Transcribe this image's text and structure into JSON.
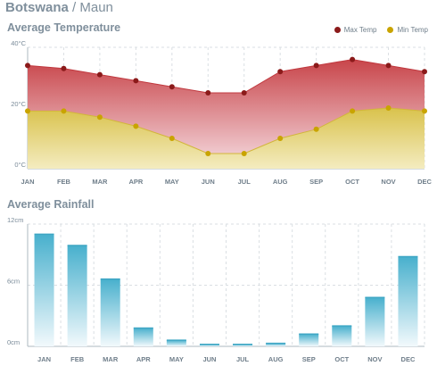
{
  "header": {
    "country": "Botswana",
    "separator": " / ",
    "city": "Maun"
  },
  "chart_data": [
    {
      "type": "area",
      "title": "Average Temperature",
      "categories": [
        "JAN",
        "FEB",
        "MAR",
        "APR",
        "MAY",
        "JUN",
        "JUL",
        "AUG",
        "SEP",
        "OCT",
        "NOV",
        "DEC"
      ],
      "series": [
        {
          "name": "Max Temp",
          "values": [
            34,
            33,
            31,
            29,
            27,
            25,
            25,
            32,
            34,
            36,
            34,
            32
          ],
          "color": "#8b1a1a"
        },
        {
          "name": "Min Temp",
          "values": [
            19,
            19,
            17,
            14,
            10,
            5,
            5,
            10,
            13,
            19,
            20,
            19
          ],
          "color": "#c9a400"
        }
      ],
      "yticks": [
        "0°C",
        "20°C",
        "40°C"
      ],
      "ylim": [
        0,
        40
      ],
      "grid": true,
      "legend": "top-right"
    },
    {
      "type": "bar",
      "title": "Average Rainfall",
      "categories": [
        "JAN",
        "FEB",
        "MAR",
        "APR",
        "MAY",
        "JUN",
        "JUL",
        "AUG",
        "SEP",
        "OCT",
        "NOV",
        "DEC"
      ],
      "values": [
        11.0,
        9.9,
        6.6,
        1.8,
        0.6,
        0.2,
        0.2,
        0.3,
        1.2,
        2.0,
        4.8,
        8.8
      ],
      "yticks": [
        "0cm",
        "6cm",
        "12cm"
      ],
      "ylim": [
        0,
        12
      ],
      "grid": true,
      "color": "#4fb3cf"
    }
  ]
}
